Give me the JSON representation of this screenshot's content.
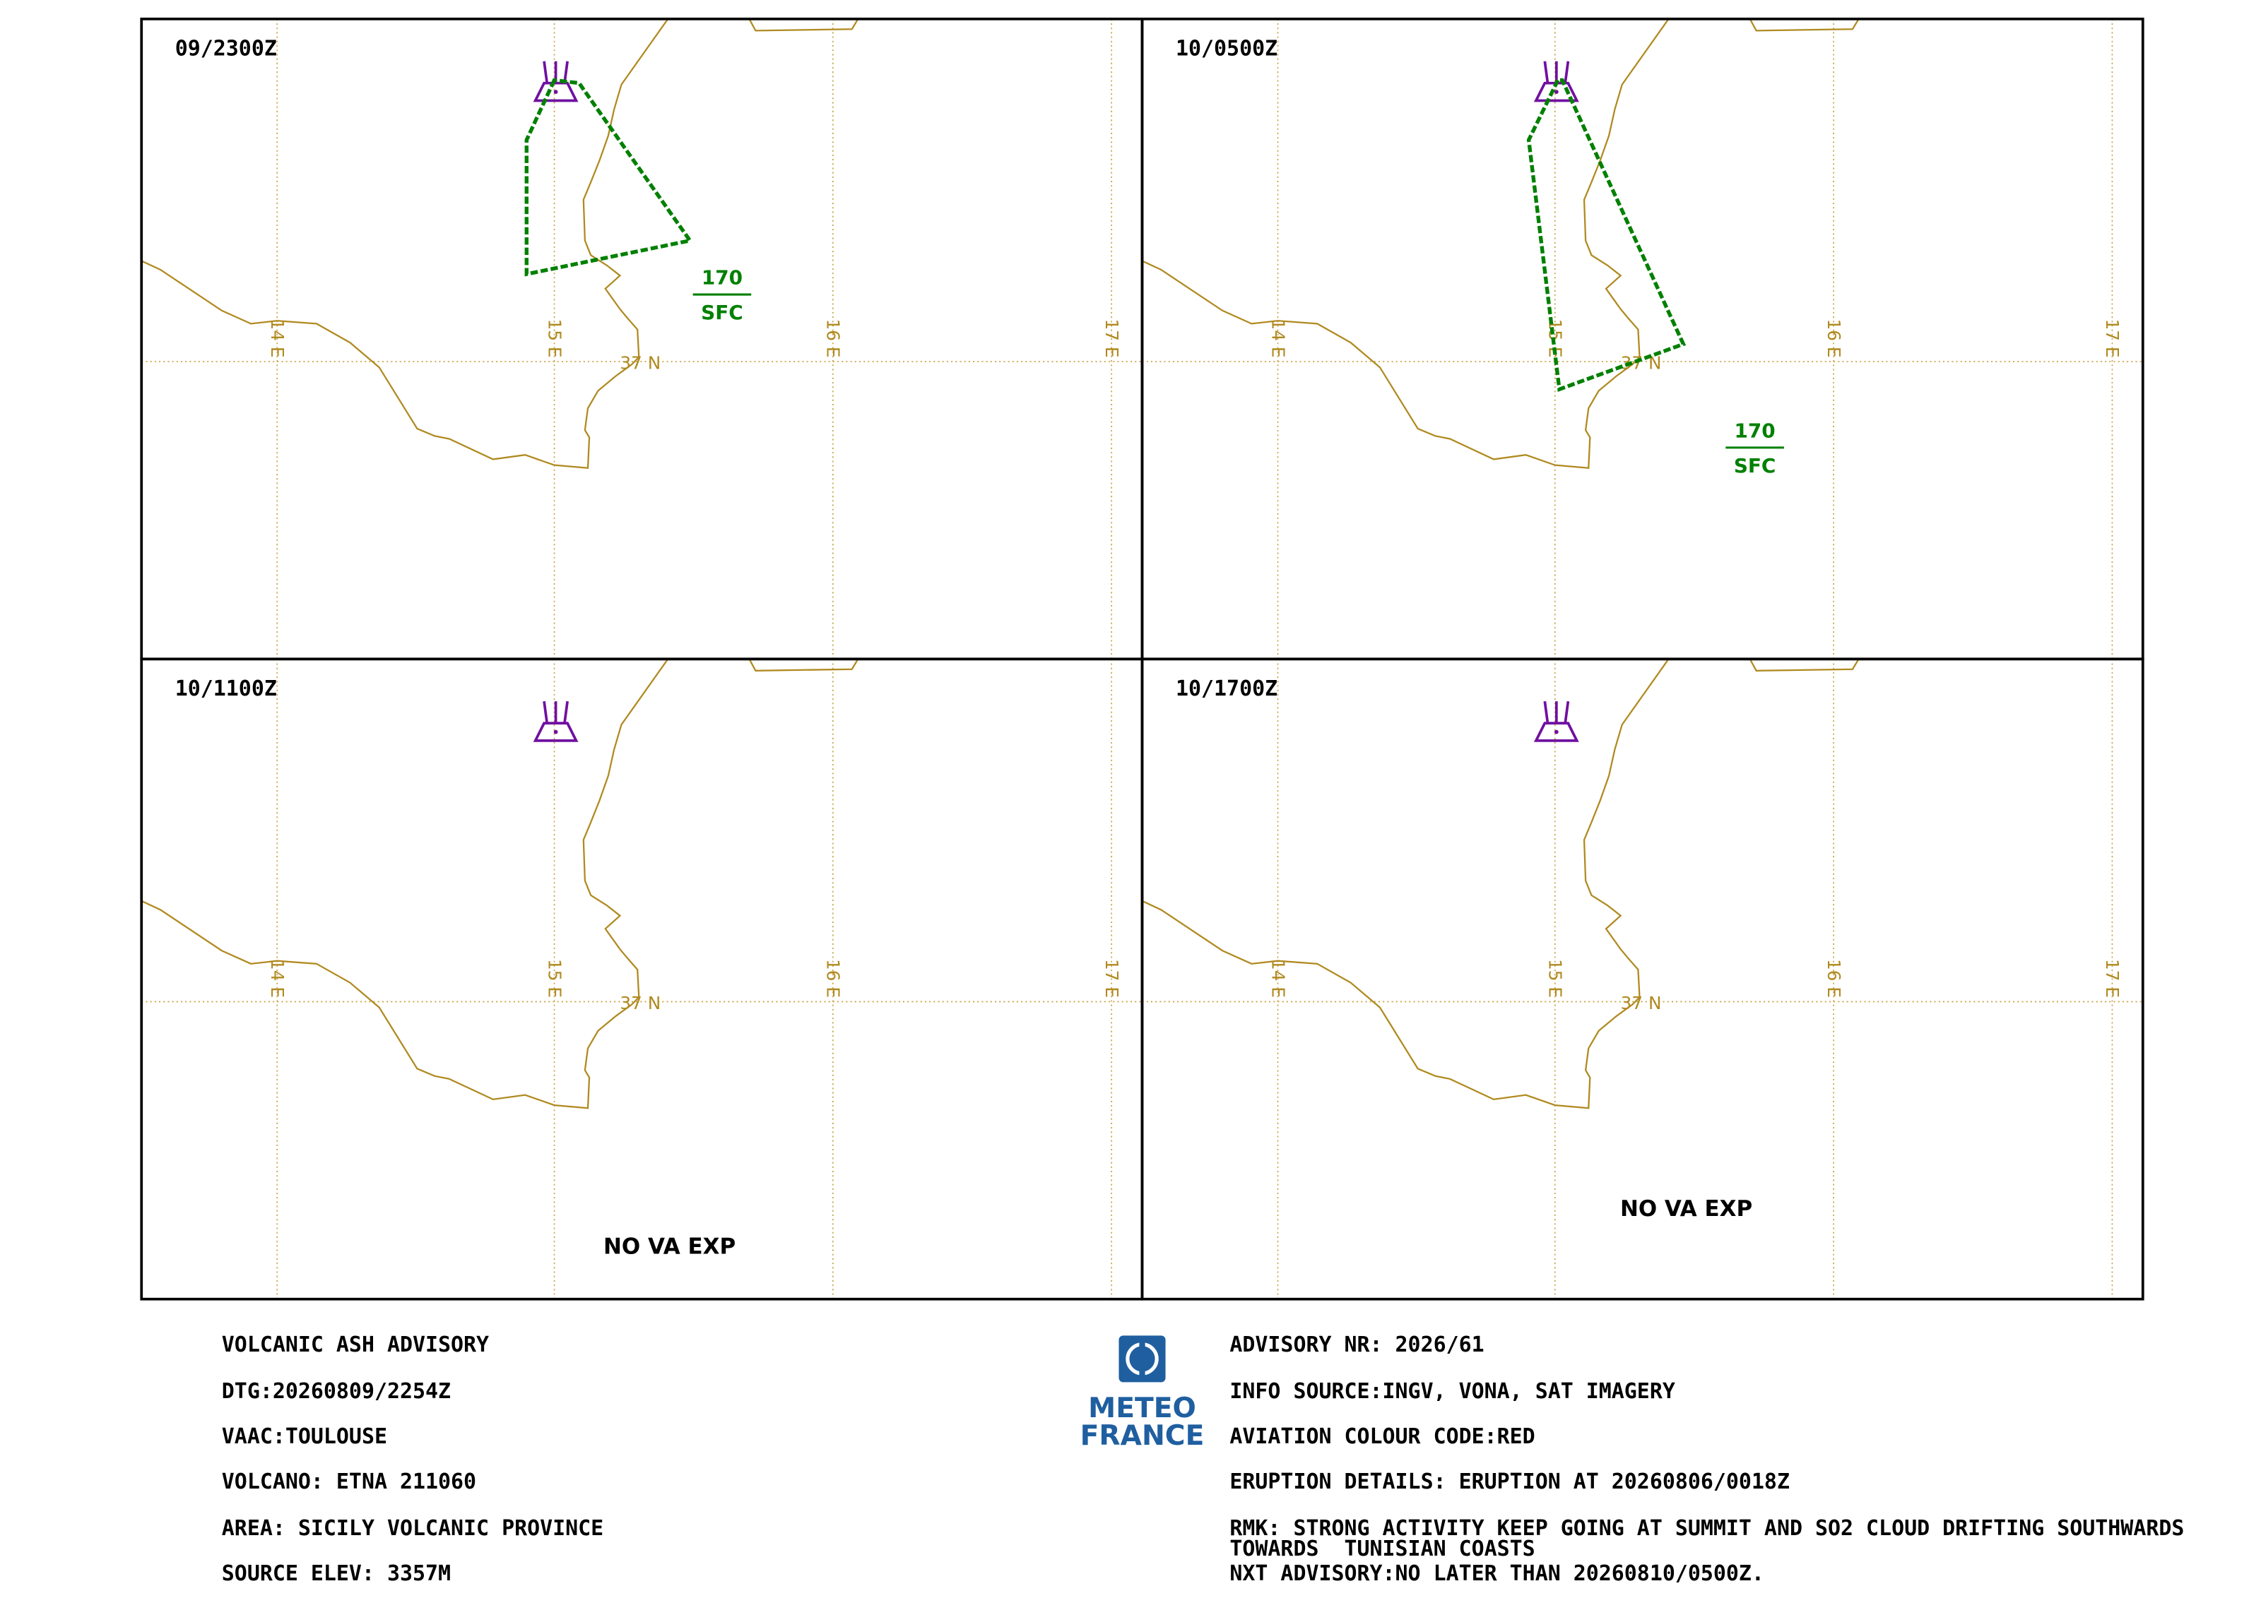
{
  "grid_labels": {
    "lon": [
      "14 E",
      "15 E",
      "16 E",
      "17 E"
    ],
    "lat": "37 N"
  },
  "panels": [
    {
      "time": "09/2300Z",
      "flight_level": {
        "top": "170",
        "bottom": "SFC"
      }
    },
    {
      "time": "10/0500Z",
      "flight_level": {
        "top": "170",
        "bottom": "SFC"
      }
    },
    {
      "time": "10/1100Z",
      "status": "NO VA EXP"
    },
    {
      "time": "10/1700Z",
      "status": "NO VA EXP"
    }
  ],
  "advisory": {
    "left": [
      "VOLCANIC ASH ADVISORY",
      "DTG:20260809/2254Z",
      "VAAC:TOULOUSE",
      "VOLCANO: ETNA 211060",
      "AREA: SICILY VOLCANIC PROVINCE",
      "SOURCE ELEV: 3357M"
    ],
    "right": [
      "ADVISORY NR: 2026/61",
      "INFO SOURCE:INGV, VONA, SAT IMAGERY",
      "AVIATION COLOUR CODE:RED",
      "ERUPTION DETAILS: ERUPTION AT 20260806/0018Z",
      "RMK: STRONG ACTIVITY KEEP GOING AT SUMMIT AND SO2 CLOUD DRIFTING SOUTHWARDS",
      "TOWARDS  TUNISIAN COASTS",
      "NXT ADVISORY:NO LATER THAN 20260810/0500Z."
    ]
  },
  "logo": {
    "line1": "METEO",
    "line2": "FRANCE"
  }
}
